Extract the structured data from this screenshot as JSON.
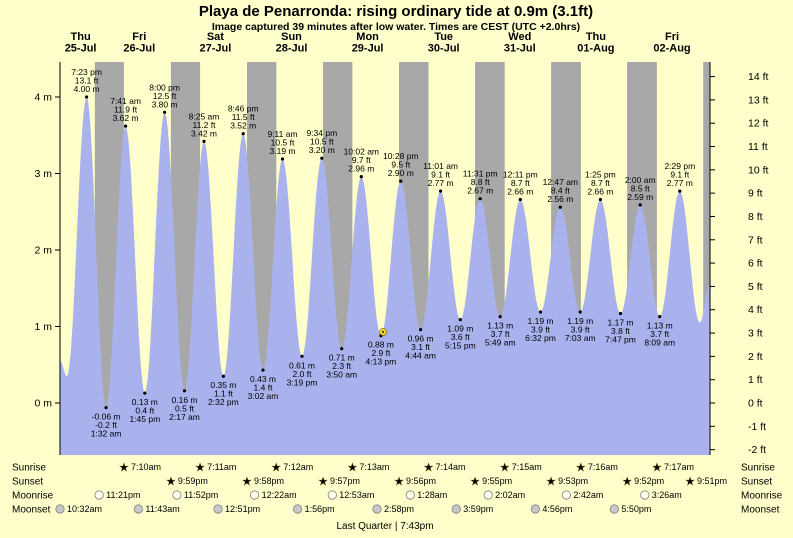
{
  "title": "Playa de Penarronda: rising  ordinary tide at 0.9m (3.1ft)",
  "subtitle": "Image captured 39 minutes after low water. Times are CEST (UTC +2.0hrs)",
  "footer": "Last Quarter | 7:43pm",
  "side_labels": {
    "sunrise": "Sunrise",
    "sunset": "Sunset",
    "moonrise": "Moonrise",
    "moonset": "Moonset"
  },
  "colors": {
    "background": "#ffffcc",
    "day_band": "#ffffcc",
    "night_band": "#a8a8a8",
    "tide_fill": "#aab2ee",
    "day_label": "#ff0000",
    "sunrise_icon": "#f2c53d",
    "sunset_icon": "#dd5a22",
    "moonrise_icon": "#fffff0",
    "moonset_icon": "#c8c8c8"
  },
  "chart_data": {
    "type": "area",
    "title": "Playa de Penarronda: rising  ordinary tide at 0.9m (3.1ft)",
    "time_domain_hours": [
      11,
      216
    ],
    "ylim_m": [
      -0.7,
      4.45
    ],
    "x_days": [
      {
        "name": "Thu",
        "date": "25-Jul"
      },
      {
        "name": "Fri",
        "date": "26-Jul"
      },
      {
        "name": "Sat",
        "date": "27-Jul"
      },
      {
        "name": "Sun",
        "date": "28-Jul"
      },
      {
        "name": "Mon",
        "date": "29-Jul"
      },
      {
        "name": "Tue",
        "date": "30-Jul"
      },
      {
        "name": "Wed",
        "date": "31-Jul"
      },
      {
        "name": "Thu",
        "date": "01-Aug"
      },
      {
        "name": "Fri",
        "date": "02-Aug"
      }
    ],
    "y_left": {
      "unit": "m",
      "values": [
        4,
        3,
        2,
        1,
        0
      ],
      "labels": [
        "4 m",
        "3 m",
        "2 m",
        "1 m",
        "0 m"
      ]
    },
    "y_right": {
      "unit": "ft",
      "values": [
        14,
        13,
        12,
        11,
        10,
        9,
        8,
        7,
        6,
        5,
        4,
        3,
        2,
        1,
        0,
        -1,
        -2
      ],
      "labels": [
        "14 ft",
        "13 ft",
        "12 ft",
        "11 ft",
        "10 ft",
        "9 ft",
        "8 ft",
        "7 ft",
        "6 ft",
        "5 ft",
        "4 ft",
        "3 ft",
        "2 ft",
        "1 ft",
        "0 ft",
        "-1 ft",
        "-2 ft"
      ]
    },
    "night_bands_hours": [
      [
        21.98,
        31.17
      ],
      [
        45.98,
        55.18
      ],
      [
        69.97,
        79.2
      ],
      [
        93.95,
        103.22
      ],
      [
        117.93,
        127.23
      ],
      [
        141.92,
        151.25
      ],
      [
        165.88,
        175.27
      ],
      [
        189.87,
        199.28
      ],
      [
        213.85,
        216
      ]
    ],
    "edge_points": [
      {
        "t": 11,
        "h": 0.55
      },
      {
        "t": 216,
        "h": 1.55
      }
    ],
    "tide_events": [
      {
        "t": 13.2,
        "h": 0.35,
        "type": "low"
      },
      {
        "t": 19.38,
        "h": 4.0,
        "type": "high",
        "labels": [
          "7:23 pm",
          "13.1 ft",
          "4.00 m"
        ]
      },
      {
        "t": 25.53,
        "h": -0.06,
        "type": "low",
        "labels": [
          "-0.06 m",
          "-0.2 ft",
          "1:32 am"
        ]
      },
      {
        "t": 31.68,
        "h": 3.62,
        "type": "high",
        "labels": [
          "7:41 am",
          "11.9 ft",
          "3.62 m"
        ]
      },
      {
        "t": 37.75,
        "h": 0.13,
        "type": "low",
        "labels": [
          "0.13 m",
          "0.4 ft",
          "1:45 pm"
        ]
      },
      {
        "t": 44.0,
        "h": 3.8,
        "type": "high",
        "labels": [
          "8:00 pm",
          "12.5 ft",
          "3.80 m"
        ]
      },
      {
        "t": 50.28,
        "h": 0.16,
        "type": "low",
        "labels": [
          "0.16 m",
          "0.5 ft",
          "2:17 am"
        ]
      },
      {
        "t": 56.42,
        "h": 3.42,
        "type": "high",
        "labels": [
          "8:25 am",
          "11.2 ft",
          "3.42 m"
        ]
      },
      {
        "t": 62.53,
        "h": 0.35,
        "type": "low",
        "labels": [
          "0.35 m",
          "1.1 ft",
          "2:32 pm"
        ]
      },
      {
        "t": 68.77,
        "h": 3.52,
        "type": "high",
        "labels": [
          "8:46 pm",
          "11.5 ft",
          "3.52 m"
        ]
      },
      {
        "t": 75.03,
        "h": 0.43,
        "type": "low",
        "labels": [
          "0.43 m",
          "1.4 ft",
          "3:02 am"
        ]
      },
      {
        "t": 81.18,
        "h": 3.19,
        "type": "high",
        "labels": [
          "9:11 am",
          "10.5 ft",
          "3.19 m"
        ]
      },
      {
        "t": 87.32,
        "h": 0.61,
        "type": "low",
        "labels": [
          "0.61 m",
          "2.0 ft",
          "3:19 pm"
        ]
      },
      {
        "t": 93.57,
        "h": 3.2,
        "type": "high",
        "labels": [
          "9:34 pm",
          "10.5 ft",
          "3.20 m"
        ]
      },
      {
        "t": 99.83,
        "h": 0.71,
        "type": "low",
        "labels": [
          "0.71 m",
          "2.3 ft",
          "3:50 am"
        ]
      },
      {
        "t": 106.03,
        "h": 2.96,
        "type": "high",
        "labels": [
          "10:02 am",
          "9.7 ft",
          "2.96 m"
        ]
      },
      {
        "t": 112.22,
        "h": 0.88,
        "type": "low",
        "labels": [
          "0.88 m",
          "2.9 ft",
          "4:13 pm"
        ]
      },
      {
        "t": 118.47,
        "h": 2.9,
        "type": "high",
        "labels": [
          "10:28 pm",
          "9.5 ft",
          "2.90 m"
        ]
      },
      {
        "t": 124.73,
        "h": 0.96,
        "type": "low",
        "labels": [
          "0.96 m",
          "3.1 ft",
          "4:44 am"
        ]
      },
      {
        "t": 131.02,
        "h": 2.77,
        "type": "high",
        "labels": [
          "11:01 am",
          "9.1 ft",
          "2.77 m"
        ]
      },
      {
        "t": 137.25,
        "h": 1.09,
        "type": "low",
        "labels": [
          "1.09 m",
          "3.6 ft",
          "5:15 pm"
        ]
      },
      {
        "t": 143.52,
        "h": 2.67,
        "type": "high",
        "labels": [
          "11:31 pm",
          "8.8 ft",
          "2.67 m"
        ]
      },
      {
        "t": 149.82,
        "h": 1.13,
        "type": "low",
        "labels": [
          "1.13 m",
          "3.7 ft",
          "5:49 am"
        ]
      },
      {
        "t": 156.18,
        "h": 2.66,
        "type": "high",
        "labels": [
          "12:11 pm",
          "8.7 ft",
          "2.66 m"
        ]
      },
      {
        "t": 162.53,
        "h": 1.19,
        "type": "low",
        "labels": [
          "1.19 m",
          "3.9 ft",
          "6:32 pm"
        ]
      },
      {
        "t": 168.78,
        "h": 2.56,
        "type": "high",
        "labels": [
          "12:47 am",
          "8.4 ft",
          "2.56 m"
        ]
      },
      {
        "t": 175.05,
        "h": 1.19,
        "type": "low",
        "labels": [
          "1.19 m",
          "3.9 ft",
          "7:03 am"
        ]
      },
      {
        "t": 181.42,
        "h": 2.66,
        "type": "high",
        "labels": [
          "1:25 pm",
          "8.7 ft",
          "2.66 m"
        ]
      },
      {
        "t": 187.78,
        "h": 1.17,
        "type": "low",
        "labels": [
          "1.17 m",
          "3.8 ft",
          "7:47 pm"
        ]
      },
      {
        "t": 194.0,
        "h": 2.59,
        "type": "high",
        "labels": [
          "2:00 am",
          "8.5 ft",
          "2.59 m"
        ]
      },
      {
        "t": 200.15,
        "h": 1.13,
        "type": "low",
        "labels": [
          "1.13 m",
          "3.7 ft",
          "8:09 am"
        ]
      },
      {
        "t": 206.48,
        "h": 2.77,
        "type": "high",
        "labels": [
          "2:29 pm",
          "9.1 ft",
          "2.77 m"
        ]
      },
      {
        "t": 212.75,
        "h": 1.05,
        "type": "low"
      }
    ],
    "current_marker": {
      "t": 112.9,
      "h": 0.93
    }
  },
  "astro_rows": [
    {
      "id": "sunrise",
      "entries": [
        {
          "t_hours": 31.17,
          "time": "7:10am"
        },
        {
          "t_hours": 55.18,
          "time": "7:11am"
        },
        {
          "t_hours": 79.2,
          "time": "7:12am"
        },
        {
          "t_hours": 103.22,
          "time": "7:13am"
        },
        {
          "t_hours": 127.23,
          "time": "7:14am"
        },
        {
          "t_hours": 151.25,
          "time": "7:15am"
        },
        {
          "t_hours": 175.27,
          "time": "7:16am"
        },
        {
          "t_hours": 199.28,
          "time": "7:17am"
        }
      ]
    },
    {
      "id": "sunset",
      "entries": [
        {
          "t_hours": 45.98,
          "time": "9:59pm"
        },
        {
          "t_hours": 69.97,
          "time": "9:58pm"
        },
        {
          "t_hours": 93.95,
          "time": "9:57pm"
        },
        {
          "t_hours": 117.93,
          "time": "9:56pm"
        },
        {
          "t_hours": 141.92,
          "time": "9:55pm"
        },
        {
          "t_hours": 165.88,
          "time": "9:53pm"
        },
        {
          "t_hours": 189.87,
          "time": "9:52pm"
        },
        {
          "t_hours": 213.85,
          "time": "9:51pm"
        }
      ]
    },
    {
      "id": "moonrise",
      "entries": [
        {
          "t_hours": 23.35,
          "time": "11:21pm"
        },
        {
          "t_hours": 47.87,
          "time": "11:52pm"
        },
        {
          "t_hours": 72.37,
          "time": "12:22am"
        },
        {
          "t_hours": 96.88,
          "time": "12:53am"
        },
        {
          "t_hours": 121.47,
          "time": "1:28am"
        },
        {
          "t_hours": 146.03,
          "time": "2:02am"
        },
        {
          "t_hours": 170.7,
          "time": "2:42am"
        },
        {
          "t_hours": 195.43,
          "time": "3:26am"
        }
      ]
    },
    {
      "id": "moonset",
      "entries": [
        {
          "t_hours": 10.53,
          "time": "10:32am"
        },
        {
          "t_hours": 35.72,
          "time": "11:43am"
        },
        {
          "t_hours": 60.85,
          "time": "12:51pm"
        },
        {
          "t_hours": 85.93,
          "time": "1:56pm"
        },
        {
          "t_hours": 110.97,
          "time": "2:58pm"
        },
        {
          "t_hours": 135.98,
          "time": "3:59pm"
        },
        {
          "t_hours": 160.93,
          "time": "4:56pm"
        },
        {
          "t_hours": 185.83,
          "time": "5:50pm"
        }
      ]
    }
  ]
}
